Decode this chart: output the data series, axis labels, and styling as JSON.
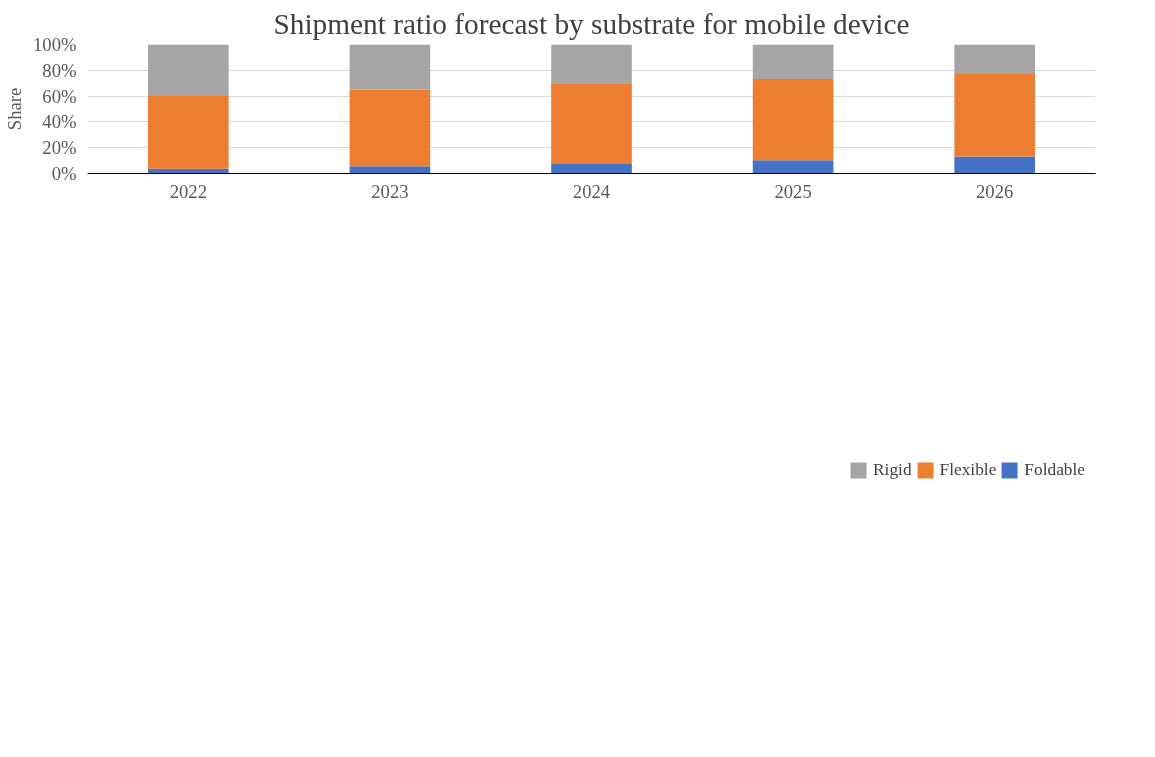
{
  "chart_data": {
    "type": "bar",
    "stacked": true,
    "title": "Shipment ratio forecast by substrate for mobile device",
    "ylabel": "Share",
    "categories": [
      "2022",
      "2023",
      "2024",
      "2025",
      "2026"
    ],
    "series": [
      {
        "name": "Foldable",
        "color": "#4472c4",
        "values": [
          3.6,
          5.6,
          8,
          10.2,
          13.1
        ]
      },
      {
        "name": "Flexible",
        "color": "#ed7d31",
        "values": [
          56.4,
          59.5,
          61.3,
          63.1,
          64
        ]
      },
      {
        "name": "Rigid",
        "color": "#a5a5a5",
        "values": [
          40,
          34.9,
          30.7,
          26.7,
          22.9
        ]
      }
    ],
    "ylim": [
      0,
      100
    ],
    "yticks": [
      {
        "value": 0,
        "label": "0%"
      },
      {
        "value": 20,
        "label": "20%"
      },
      {
        "value": 40,
        "label": "40%"
      },
      {
        "value": 60,
        "label": "60%"
      },
      {
        "value": 80,
        "label": "80%"
      },
      {
        "value": 100,
        "label": "100%"
      }
    ],
    "grid": "y",
    "legend": "bottom"
  }
}
